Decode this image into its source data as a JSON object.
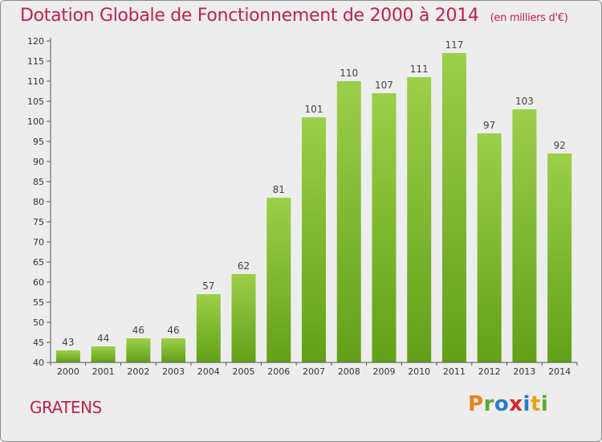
{
  "chart_data": {
    "type": "bar",
    "title": "Dotation Globale de Fonctionnement de 2000 à 2014",
    "subtitle": "(en milliers d'€)",
    "categories": [
      "2000",
      "2001",
      "2002",
      "2003",
      "2004",
      "2005",
      "2006",
      "2007",
      "2008",
      "2009",
      "2010",
      "2011",
      "2012",
      "2013",
      "2014"
    ],
    "values": [
      43,
      44,
      46,
      46,
      57,
      62,
      81,
      101,
      110,
      107,
      111,
      117,
      97,
      103,
      92
    ],
    "ylim": [
      40,
      120
    ],
    "yticks": [
      40,
      45,
      50,
      55,
      60,
      65,
      70,
      75,
      80,
      85,
      90,
      95,
      100,
      105,
      110,
      115,
      120
    ],
    "xlabel": "",
    "ylabel": "",
    "grid": false,
    "bar_color_top": "#9ccf4a",
    "bar_color_bottom": "#62a018"
  },
  "footer": {
    "commune": "GRATENS",
    "logo_letters": [
      "P",
      "r",
      "o",
      "x",
      "i",
      "t",
      "i"
    ],
    "logo_colors": [
      "#e8821e",
      "#5aa832",
      "#2a7fc8",
      "#d8262e",
      "#2a7fc8",
      "#e8a21e",
      "#5aa832"
    ]
  }
}
